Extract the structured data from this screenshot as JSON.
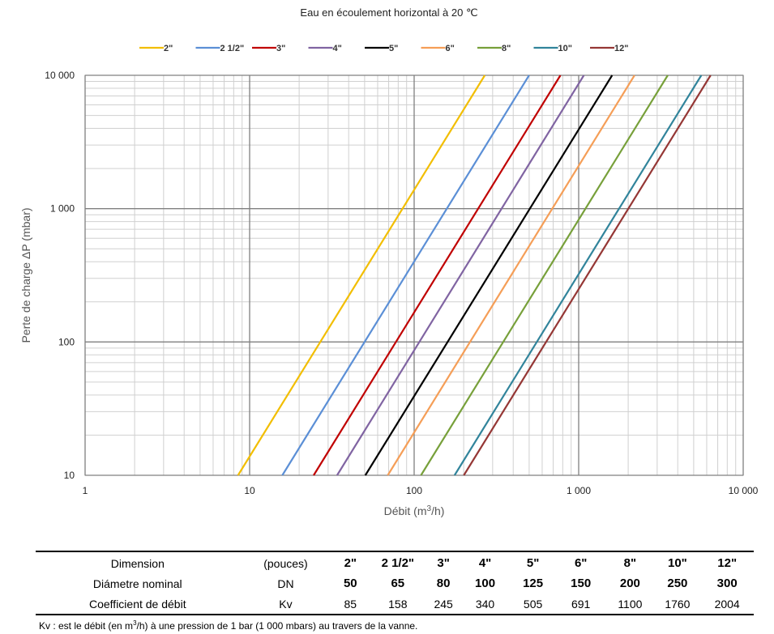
{
  "chart_data": {
    "type": "line",
    "title": "Eau en écoulement horizontal à 20 ℃",
    "xlabel_prefix": "Débit   (m",
    "xlabel_sup": "3",
    "xlabel_suffix": "/h)",
    "ylabel": "Perte de charge    ΔP (mbar)",
    "x_scale": "log",
    "y_scale": "log",
    "xlim": [
      1,
      10000
    ],
    "ylim": [
      10,
      10000
    ],
    "x_ticks": [
      1,
      10,
      100,
      1000,
      10000
    ],
    "x_tick_labels": [
      "1",
      "10",
      "100",
      "1 000",
      "10 000"
    ],
    "y_ticks": [
      10,
      100,
      1000,
      10000
    ],
    "y_tick_labels": [
      "10",
      "100",
      "1 000",
      "10 000"
    ],
    "grid": true,
    "legend_position": "top",
    "series": [
      {
        "name": "2\"",
        "color": "#f2be00",
        "kv": 85
      },
      {
        "name": "2 1/2\"",
        "color": "#5b8fd6",
        "kv": 158
      },
      {
        "name": "3\"",
        "color": "#c00000",
        "kv": 245
      },
      {
        "name": "4\"",
        "color": "#8064a2",
        "kv": 340
      },
      {
        "name": "5\"",
        "color": "#000000",
        "kv": 505
      },
      {
        "name": "6\"",
        "color": "#f59e57",
        "kv": 691
      },
      {
        "name": "8\"",
        "color": "#77a03a",
        "kv": 1100
      },
      {
        "name": "10\"",
        "color": "#31849b",
        "kv": 1760
      },
      {
        "name": "12\"",
        "color": "#953735",
        "kv": 2004
      }
    ]
  },
  "table": {
    "row1_label": "Dimension",
    "row1_unit": "(pouces)",
    "row2_label": "Diámetre nominal",
    "row2_unit": "DN",
    "row3_label": "Coefficient de débit",
    "row3_unit": "Kv",
    "sizes": [
      "2\"",
      "2 1/2\"",
      "3\"",
      "4\"",
      "5\"",
      "6\"",
      "8\"",
      "10\"",
      "12\""
    ],
    "dn": [
      "50",
      "65",
      "80",
      "100",
      "125",
      "150",
      "200",
      "250",
      "300"
    ],
    "kv": [
      "85",
      "158",
      "245",
      "340",
      "505",
      "691",
      "1100",
      "1760",
      "2004"
    ]
  },
  "footnote_prefix": "Kv : est le débit (en m",
  "footnote_sup": "3",
  "footnote_suffix": "/h) à une pression de 1 bar (1 000 mbars) au travers de la vanne."
}
